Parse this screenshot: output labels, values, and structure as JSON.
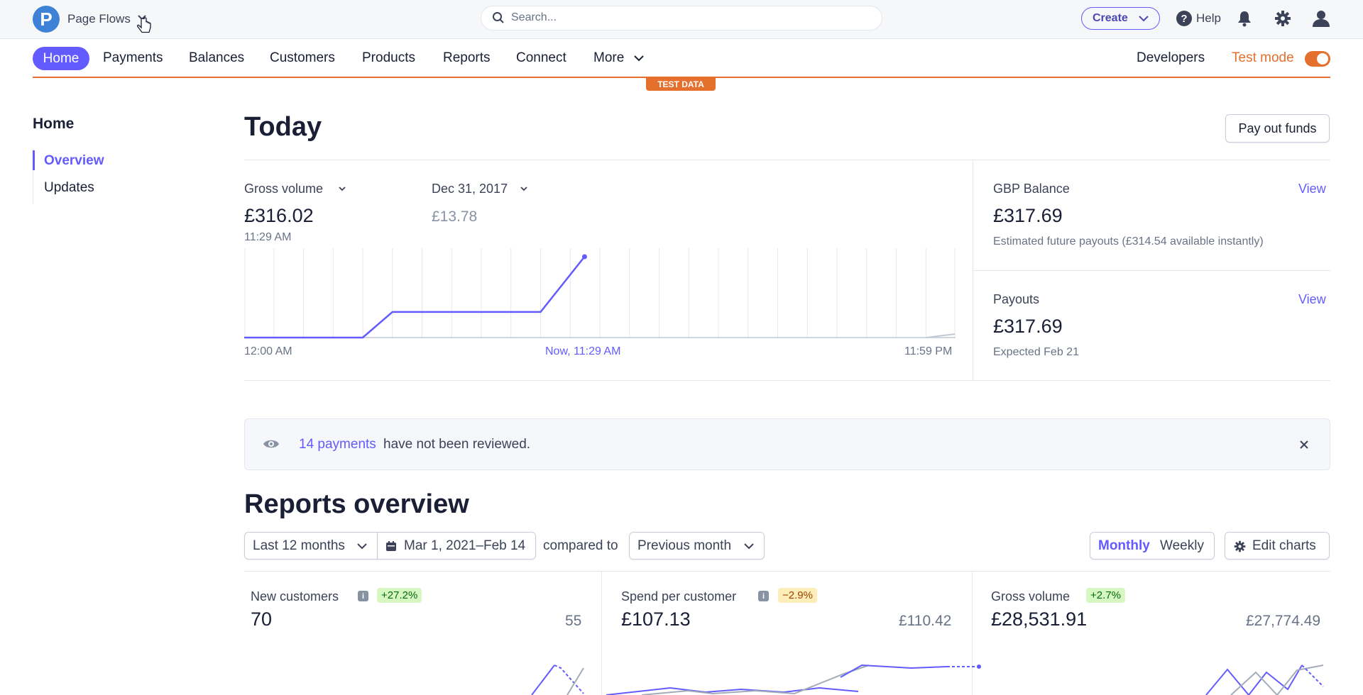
{
  "topbar": {
    "logo_letter": "P",
    "account_name": "Page Flows",
    "search_placeholder": "Search...",
    "create_label": "Create",
    "help_label": "Help"
  },
  "nav": {
    "items": [
      "Home",
      "Payments",
      "Balances",
      "Customers",
      "Products",
      "Reports",
      "Connect",
      "More"
    ],
    "developers": "Developers",
    "test_mode": "Test mode",
    "test_data_badge": "TEST DATA"
  },
  "sidebar": {
    "title": "Home",
    "items": [
      "Overview",
      "Updates"
    ]
  },
  "today": {
    "title": "Today",
    "payout_button": "Pay out funds",
    "gross_volume_label": "Gross volume",
    "gross_volume_value": "£316.02",
    "gross_volume_time": "11:29 AM",
    "compare_date_label": "Dec 31, 2017",
    "compare_value": "£13.78",
    "axis_start": "12:00 AM",
    "axis_now": "Now, 11:29 AM",
    "axis_end": "11:59 PM",
    "balance": {
      "label": "GBP Balance",
      "link": "View",
      "value": "£317.69",
      "note": "Estimated future payouts (£314.54 available instantly)"
    },
    "payouts": {
      "label": "Payouts",
      "link": "View",
      "value": "£317.69",
      "note": "Expected Feb 21"
    }
  },
  "banner": {
    "link_text": "14 payments",
    "text": "have not been reviewed."
  },
  "reports": {
    "title": "Reports overview",
    "range": "Last 12 months",
    "dates": "Mar 1, 2021–Feb 14",
    "compared_to": "compared to",
    "compare_period": "Previous month",
    "monthly": "Monthly",
    "weekly": "Weekly",
    "edit_charts": "Edit charts",
    "metrics": [
      {
        "label": "New customers",
        "change": "+27.2%",
        "value": "70",
        "previous": "55"
      },
      {
        "label": "Spend per customer",
        "change": "−2.9%",
        "value": "£107.13",
        "previous": "£110.42"
      },
      {
        "label": "Gross volume",
        "change": "+2.7%",
        "value": "£28,531.91",
        "previous": "£27,774.49"
      }
    ]
  },
  "colors": {
    "accent": "#635bff",
    "test_mode": "#e56f2c",
    "positive_badge_bg": "#d7f7c2",
    "negative_badge_bg": "#fcedb9"
  },
  "chart_data": {
    "type": "line",
    "title": "Gross volume",
    "series": [
      {
        "x": [
          "12:00 AM",
          "04:00 AM",
          "05:00 AM",
          "10:00 AM",
          "11:29 AM"
        ],
        "values": [
          0,
          0,
          100,
          100,
          316.02
        ]
      },
      {
        "x": [
          "11:00 PM",
          "11:59 PM"
        ],
        "values": [
          0,
          13.78
        ]
      }
    ],
    "grid": true
  }
}
